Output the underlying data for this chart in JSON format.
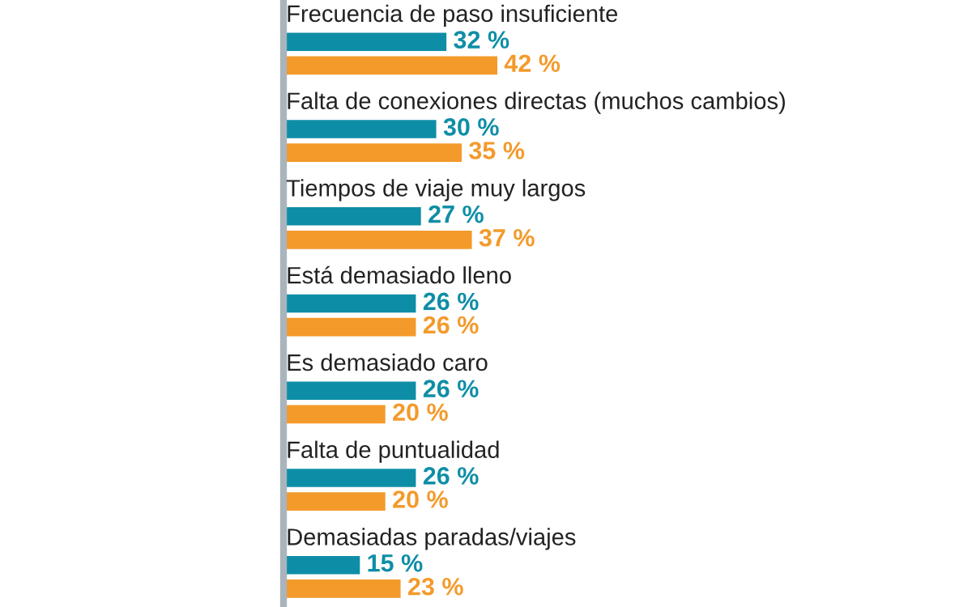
{
  "chart_data": {
    "type": "bar",
    "orientation": "horizontal",
    "categories": [
      "Frecuencia de paso insuficiente",
      "Falta de conexiones directas (muchos cambios)",
      "Tiempos de viaje muy largos",
      "Está demasiado lleno",
      "Es demasiado caro",
      "Falta de puntualidad",
      "Demasiadas paradas/viajes"
    ],
    "series": [
      {
        "color": "#0e8ea6",
        "values": [
          32,
          30,
          27,
          26,
          26,
          26,
          15
        ],
        "value_labels": [
          "32 %",
          "30 %",
          "27 %",
          "26 %",
          "26 %",
          "26 %",
          "15 %"
        ]
      },
      {
        "color": "#f39a2b",
        "values": [
          42,
          35,
          37,
          26,
          20,
          20,
          23
        ],
        "value_labels": [
          "42 %",
          "35 %",
          "37 %",
          "26 %",
          "20 %",
          "20 %",
          "23 %"
        ]
      }
    ]
  }
}
